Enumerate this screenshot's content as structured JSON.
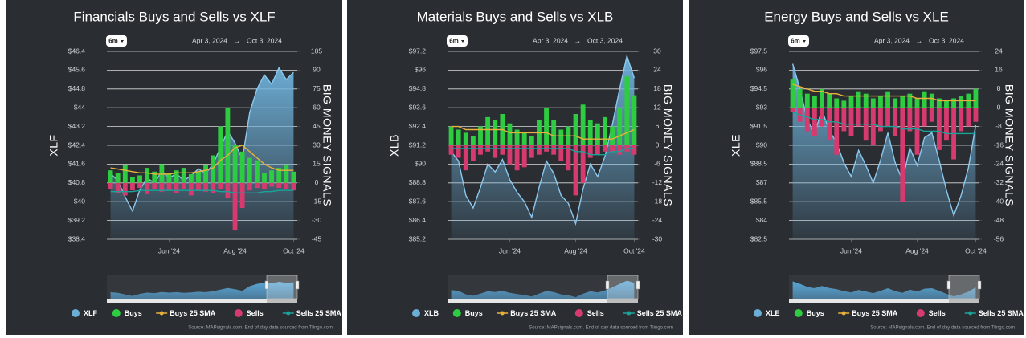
{
  "chart_data": [
    {
      "type": "combo",
      "title": "Financials Buys and Sells vs XLF",
      "range_button": "6m",
      "date_from": "Apr 3, 2024",
      "date_arrow": "→",
      "date_to": "Oct 3, 2024",
      "y_label": "XLF",
      "y2_label": "BIG MONEY SIGNALS",
      "source": "Source: MAPsignals.com. End of day data sourced from Tiingo.com",
      "categories": [
        null,
        null,
        null,
        null,
        null,
        null,
        null,
        null,
        "Jun '24",
        null,
        null,
        null,
        null,
        null,
        null,
        null,
        null,
        "Aug '24",
        null,
        null,
        null,
        null,
        null,
        null,
        null,
        "Oct '24"
      ],
      "ylim": [
        38.4,
        46.4
      ],
      "yticks": [
        {
          "value": 46.4,
          "label": "$46.4"
        },
        {
          "value": 45.6,
          "label": "$45.6"
        },
        {
          "value": 44.8,
          "label": "$44.8"
        },
        {
          "value": 44,
          "label": "$44"
        },
        {
          "value": 43.2,
          "label": "$43.2"
        },
        {
          "value": 42.4,
          "label": "$42.4"
        },
        {
          "value": 41.6,
          "label": "$41.6"
        },
        {
          "value": 40.8,
          "label": "$40.8"
        },
        {
          "value": 40,
          "label": "$40"
        },
        {
          "value": 39.2,
          "label": "$39.2"
        },
        {
          "value": 38.4,
          "label": "$38.4"
        }
      ],
      "y2lim": [
        -45,
        105
      ],
      "y2ticks": [
        105,
        90,
        75,
        60,
        45,
        30,
        15,
        0,
        -15,
        -30,
        -45
      ],
      "grid": true,
      "series": [
        {
          "name": "XLF",
          "type": "area",
          "color": "#6baed6",
          "values": [
            41.2,
            40.9,
            40.2,
            39.6,
            40.5,
            41.0,
            40.8,
            41.3,
            41.0,
            41.2,
            40.9,
            41.1,
            41.4,
            41.2,
            41.6,
            42.3,
            43.0,
            42.5,
            41.8,
            43.8,
            44.8,
            45.4,
            45.0,
            45.7,
            45.2,
            45.5
          ]
        },
        {
          "name": "Buys",
          "type": "bar",
          "axis": "y2",
          "color": "#2ecc40",
          "values": [
            10,
            8,
            14,
            5,
            6,
            12,
            9,
            15,
            8,
            10,
            12,
            7,
            9,
            14,
            22,
            45,
            60,
            30,
            25,
            20,
            18,
            8,
            10,
            12,
            14,
            9
          ]
        },
        {
          "name": "Buys 25 SMA",
          "type": "line",
          "axis": "y2",
          "color": "#e8b23a",
          "values": [
            12,
            11,
            10,
            9,
            8,
            8,
            7,
            7,
            7,
            8,
            8,
            8,
            9,
            10,
            12,
            18,
            22,
            28,
            30,
            25,
            20,
            15,
            12,
            10,
            10,
            10
          ]
        },
        {
          "name": "Sells",
          "type": "bar",
          "axis": "y2",
          "color": "#d63a6e",
          "values": [
            -5,
            -8,
            -10,
            -6,
            -4,
            -9,
            -5,
            -7,
            -6,
            -8,
            -5,
            -10,
            -6,
            -7,
            -8,
            -5,
            -12,
            -38,
            -20,
            -6,
            -4,
            -5,
            -3,
            -4,
            -5,
            -6
          ]
        },
        {
          "name": "Sells 25 SMA",
          "type": "line",
          "axis": "y2",
          "color": "#1aa39a",
          "values": [
            -7,
            -7,
            -7,
            -7,
            -6,
            -6,
            -6,
            -6,
            -6,
            -6,
            -6,
            -6,
            -6,
            -6,
            -6,
            -7,
            -7,
            -8,
            -8,
            -8,
            -8,
            -7,
            -7,
            -6,
            -6,
            -6
          ]
        }
      ]
    },
    {
      "type": "combo",
      "title": "Materials Buys and Sells vs XLB",
      "range_button": "6m",
      "date_from": "Apr 3, 2024",
      "date_arrow": "→",
      "date_to": "Oct 3, 2024",
      "y_label": "XLB",
      "y2_label": "BIG MONEY SIGNALS",
      "source": "Source: MAPsignals.com. End of day data sourced from Tiingo.com",
      "categories": [
        null,
        null,
        null,
        null,
        null,
        null,
        null,
        null,
        "Jun '24",
        null,
        null,
        null,
        null,
        null,
        null,
        null,
        null,
        "Aug '24",
        null,
        null,
        null,
        null,
        null,
        null,
        null,
        "Oct '24"
      ],
      "ylim": [
        85.2,
        97.2
      ],
      "yticks": [
        {
          "value": 97.2,
          "label": "$97.2"
        },
        {
          "value": 96,
          "label": "$96"
        },
        {
          "value": 94.8,
          "label": "$94.8"
        },
        {
          "value": 93.6,
          "label": "$93.6"
        },
        {
          "value": 92.4,
          "label": "$92.4"
        },
        {
          "value": 91.2,
          "label": "$91.2"
        },
        {
          "value": 90,
          "label": "$90"
        },
        {
          "value": 88.8,
          "label": "$88.8"
        },
        {
          "value": 87.6,
          "label": "$87.6"
        },
        {
          "value": 86.4,
          "label": "$86.4"
        },
        {
          "value": 85.2,
          "label": "$85.2"
        }
      ],
      "y2lim": [
        -30,
        30
      ],
      "y2ticks": [
        30,
        24,
        18,
        12,
        6,
        0,
        -6,
        -12,
        -18,
        -24,
        -30
      ],
      "grid": true,
      "series": [
        {
          "name": "XLB",
          "type": "area",
          "color": "#6baed6",
          "values": [
            90.8,
            90.2,
            88.0,
            87.2,
            88.5,
            90.0,
            89.5,
            90.3,
            89.0,
            88.2,
            87.6,
            86.6,
            88.5,
            90.2,
            89.4,
            88.0,
            87.5,
            86.2,
            88.4,
            90.0,
            89.2,
            90.5,
            92.5,
            94.8,
            96.9,
            95.5
          ]
        },
        {
          "name": "Buys",
          "type": "bar",
          "axis": "y2",
          "color": "#2ecc40",
          "values": [
            6,
            5,
            4,
            3,
            6,
            9,
            8,
            10,
            7,
            5,
            4,
            3,
            8,
            12,
            8,
            5,
            6,
            10,
            13,
            8,
            7,
            9,
            6,
            12,
            22,
            16
          ]
        },
        {
          "name": "Buys 25 SMA",
          "type": "line",
          "axis": "y2",
          "color": "#e8b23a",
          "values": [
            6,
            6,
            5,
            5,
            5,
            5,
            5,
            5,
            4,
            4,
            4,
            4,
            4,
            4,
            3,
            3,
            3,
            3,
            2,
            2,
            2,
            2,
            2,
            3,
            4,
            5
          ]
        },
        {
          "name": "Sells",
          "type": "bar",
          "axis": "y2",
          "color": "#d63a6e",
          "values": [
            -3,
            -4,
            -8,
            -5,
            -3,
            -2,
            -4,
            -3,
            -6,
            -8,
            -7,
            -4,
            -3,
            -2,
            -3,
            -5,
            -8,
            -16,
            -12,
            -4,
            -3,
            -2,
            -2,
            -3,
            -2,
            -3
          ]
        },
        {
          "name": "Sells 25 SMA",
          "type": "line",
          "axis": "y2",
          "color": "#1aa39a",
          "values": [
            -1,
            -1,
            -1,
            -1,
            -1,
            -1,
            -1,
            -1,
            -1,
            -1,
            -1,
            -1,
            -1,
            -1,
            -1,
            -1,
            -1,
            -2,
            -2,
            -3,
            -3,
            -3,
            -2,
            -2,
            -1,
            -1
          ]
        }
      ]
    },
    {
      "type": "combo",
      "title": "Energy Buys and Sells vs XLE",
      "range_button": "6m",
      "date_from": "Apr 3, 2024",
      "date_arrow": "→",
      "date_to": "Oct 3, 2024",
      "y_label": "XLE",
      "y2_label": "BIG MONEY SIGNALS",
      "source": "Source: MAPsignals.com. End of day data sourced from Tiingo.com",
      "categories": [
        null,
        null,
        null,
        null,
        null,
        null,
        null,
        null,
        "Jun '24",
        null,
        null,
        null,
        null,
        null,
        null,
        null,
        null,
        "Aug '24",
        null,
        null,
        null,
        null,
        null,
        null,
        null,
        "Oct '24"
      ],
      "ylim": [
        82.5,
        97.5
      ],
      "yticks": [
        {
          "value": 97.5,
          "label": "$97.5"
        },
        {
          "value": 96,
          "label": "$96"
        },
        {
          "value": 94.5,
          "label": "$94.5"
        },
        {
          "value": 93,
          "label": "$93"
        },
        {
          "value": 91.5,
          "label": "$91.5"
        },
        {
          "value": 90,
          "label": "$90"
        },
        {
          "value": 88.5,
          "label": "$88.5"
        },
        {
          "value": 87,
          "label": "$87"
        },
        {
          "value": 85.5,
          "label": "$85.5"
        },
        {
          "value": 84,
          "label": "$84"
        },
        {
          "value": 82.5,
          "label": "$82.5"
        }
      ],
      "y2lim": [
        -56,
        24
      ],
      "y2ticks": [
        24,
        16,
        8,
        0,
        -8,
        -16,
        -24,
        -32,
        -40,
        -48,
        -56
      ],
      "grid": true,
      "series": [
        {
          "name": "XLE",
          "type": "area",
          "color": "#6baed6",
          "values": [
            96.5,
            94.5,
            92.0,
            91.0,
            92.8,
            91.2,
            90.2,
            88.6,
            87.5,
            89.6,
            88.4,
            87.0,
            88.8,
            91.0,
            88.6,
            87.2,
            89.8,
            88.4,
            90.6,
            91.0,
            88.8,
            86.4,
            84.4,
            86.0,
            88.2,
            91.6
          ]
        },
        {
          "name": "Buys",
          "type": "bar",
          "axis": "y2",
          "color": "#2ecc40",
          "values": [
            12,
            8,
            6,
            5,
            8,
            6,
            4,
            3,
            5,
            7,
            6,
            4,
            5,
            7,
            4,
            5,
            6,
            4,
            7,
            6,
            4,
            3,
            4,
            5,
            6,
            8
          ]
        },
        {
          "name": "Buys 25 SMA",
          "type": "line",
          "axis": "y2",
          "color": "#e8b23a",
          "values": [
            10,
            9,
            8,
            7,
            7,
            6,
            6,
            5,
            5,
            5,
            5,
            5,
            5,
            5,
            5,
            5,
            5,
            4,
            4,
            4,
            3,
            3,
            3,
            3,
            3,
            3
          ]
        },
        {
          "name": "Sells",
          "type": "bar",
          "axis": "y2",
          "color": "#d63a6e",
          "values": [
            -2,
            -6,
            -10,
            -12,
            -8,
            -14,
            -20,
            -10,
            -12,
            -8,
            -14,
            -16,
            -10,
            -8,
            -12,
            -40,
            -10,
            -20,
            -8,
            -6,
            -18,
            -14,
            -22,
            -10,
            -8,
            -6
          ]
        },
        {
          "name": "Sells 25 SMA",
          "type": "line",
          "axis": "y2",
          "color": "#1aa39a",
          "values": [
            -2,
            -3,
            -4,
            -5,
            -5,
            -6,
            -6,
            -7,
            -7,
            -7,
            -7,
            -7,
            -8,
            -8,
            -8,
            -9,
            -9,
            -9,
            -10,
            -10,
            -10,
            -11,
            -11,
            -11,
            -11,
            -11
          ]
        }
      ]
    }
  ]
}
